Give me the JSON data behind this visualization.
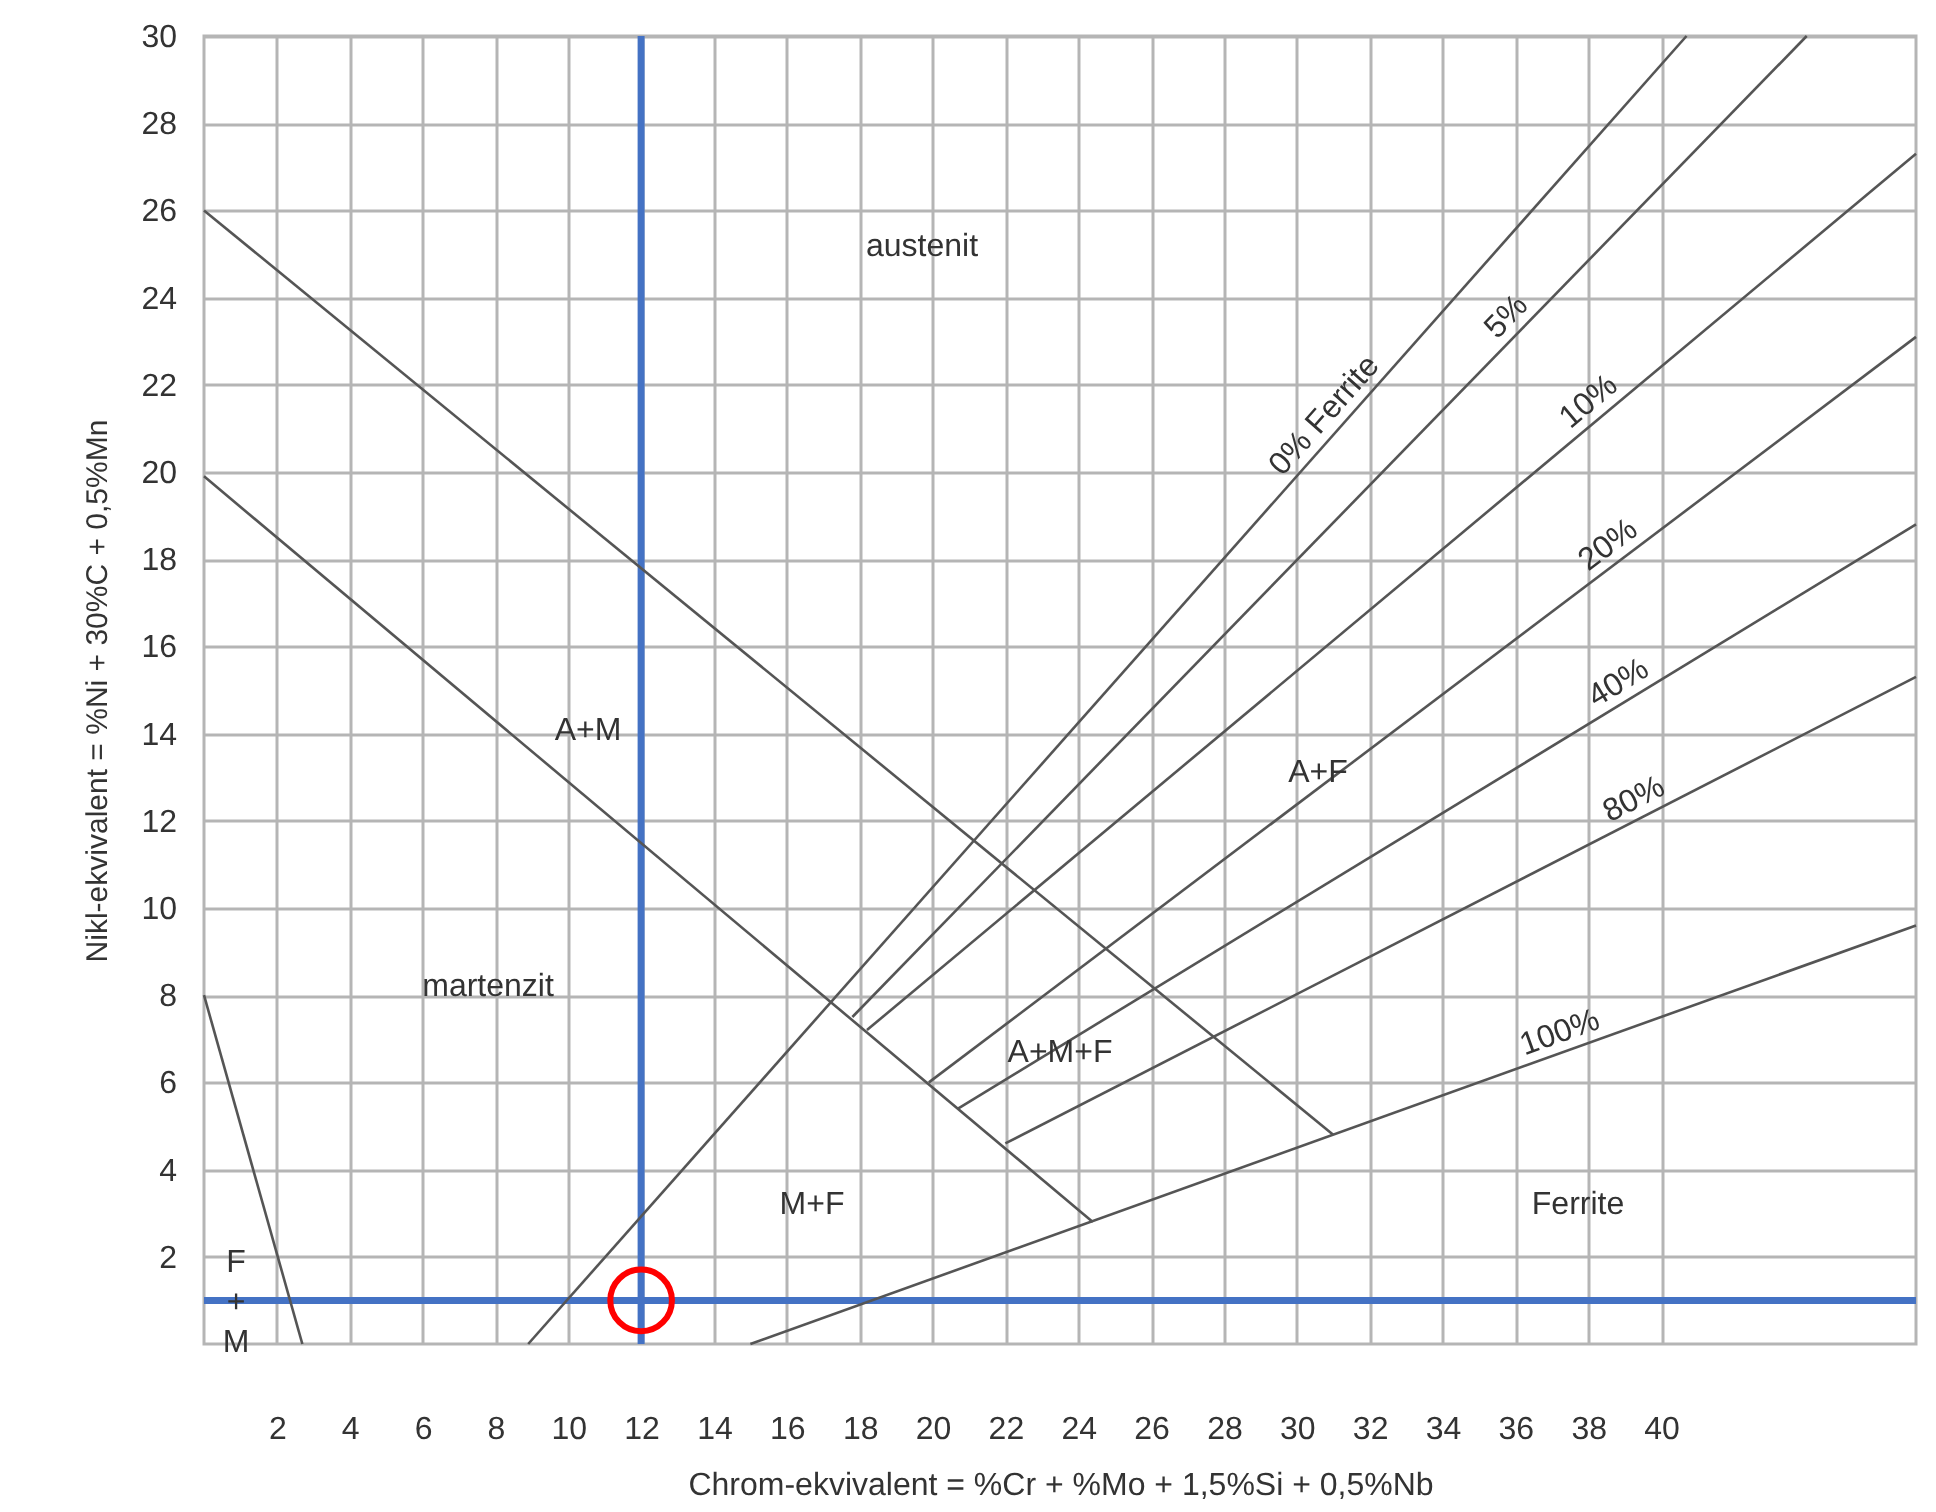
{
  "chart_data": {
    "type": "line",
    "xlabel": "Chrom-ekvivalent = %Cr + %Mo + 1,5%Si + 0,5%Nb",
    "ylabel": "Nikl-ekvivalent = %Ni + 30%C + 0,5%Mn",
    "xlim": [
      0,
      47
    ],
    "xticks": [
      2,
      4,
      6,
      8,
      10,
      12,
      14,
      16,
      18,
      20,
      22,
      24,
      26,
      28,
      30,
      32,
      34,
      36,
      38,
      40
    ],
    "ylim": [
      0,
      30
    ],
    "yticks": [
      2,
      4,
      6,
      8,
      10,
      12,
      14,
      16,
      18,
      20,
      22,
      24,
      26,
      28,
      30
    ],
    "grid": true,
    "line_style": "solid",
    "series": [
      {
        "x": [
          0,
          2.7
        ],
        "values": [
          8,
          0
        ],
        "color": "#555555"
      },
      {
        "x": [
          0,
          31
        ],
        "values": [
          26,
          4.8
        ],
        "color": "#555555"
      },
      {
        "x": [
          0,
          24.4
        ],
        "values": [
          19.9,
          2.8
        ],
        "color": "#555555"
      },
      {
        "name": "0% Ferrite",
        "x": [
          8.9,
          40.7
        ],
        "values": [
          0,
          30
        ],
        "color": "#555555"
      },
      {
        "name": "5%",
        "x": [
          17.8,
          44
        ],
        "values": [
          7.5,
          30
        ],
        "color": "#555555"
      },
      {
        "name": "10%",
        "x": [
          18.2,
          47
        ],
        "values": [
          7.2,
          27.3
        ],
        "color": "#555555"
      },
      {
        "name": "20%",
        "x": [
          19.9,
          47
        ],
        "values": [
          6,
          23.1
        ],
        "color": "#555555"
      },
      {
        "name": "40%",
        "x": [
          20.7,
          47
        ],
        "values": [
          5.4,
          18.8
        ],
        "color": "#555555"
      },
      {
        "name": "80%",
        "x": [
          22,
          47
        ],
        "values": [
          4.6,
          15.3
        ],
        "color": "#555555"
      },
      {
        "name": "100%",
        "x": [
          15,
          47
        ],
        "values": [
          0,
          9.6
        ],
        "color": "#555555"
      },
      {
        "type": "scatter",
        "marker": "circle",
        "x": [
          12
        ],
        "values": [
          1
        ],
        "color": "#ff0000"
      }
    ],
    "ref_lines": [
      {
        "axis": "x",
        "value": 12,
        "color": "#4472c4"
      },
      {
        "axis": "y",
        "value": 1,
        "color": "#4472c4"
      }
    ],
    "annotations": [
      "austenit",
      "A+M",
      "martenzit",
      "M+F",
      "A+M+F",
      "A+F",
      "Ferrite",
      "F\n+\nM"
    ]
  }
}
